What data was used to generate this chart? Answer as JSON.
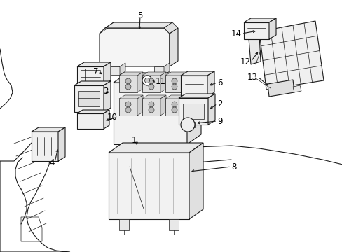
{
  "bg": "#ffffff",
  "lc": "#1a1a1a",
  "lw": 0.8,
  "lw_thin": 0.5,
  "fs": 8.5,
  "fig_w": 4.89,
  "fig_h": 3.6,
  "dpi": 100,
  "labels": [
    [
      "1",
      195,
      198
    ],
    [
      "2",
      305,
      148
    ],
    [
      "3",
      155,
      130
    ],
    [
      "4",
      75,
      230
    ],
    [
      "5",
      198,
      22
    ],
    [
      "6",
      305,
      118
    ],
    [
      "7",
      140,
      102
    ],
    [
      "8",
      330,
      235
    ],
    [
      "9",
      305,
      172
    ],
    [
      "10",
      168,
      165
    ],
    [
      "11",
      218,
      115
    ],
    [
      "12",
      358,
      88
    ],
    [
      "13",
      367,
      108
    ],
    [
      "14",
      342,
      48
    ]
  ]
}
